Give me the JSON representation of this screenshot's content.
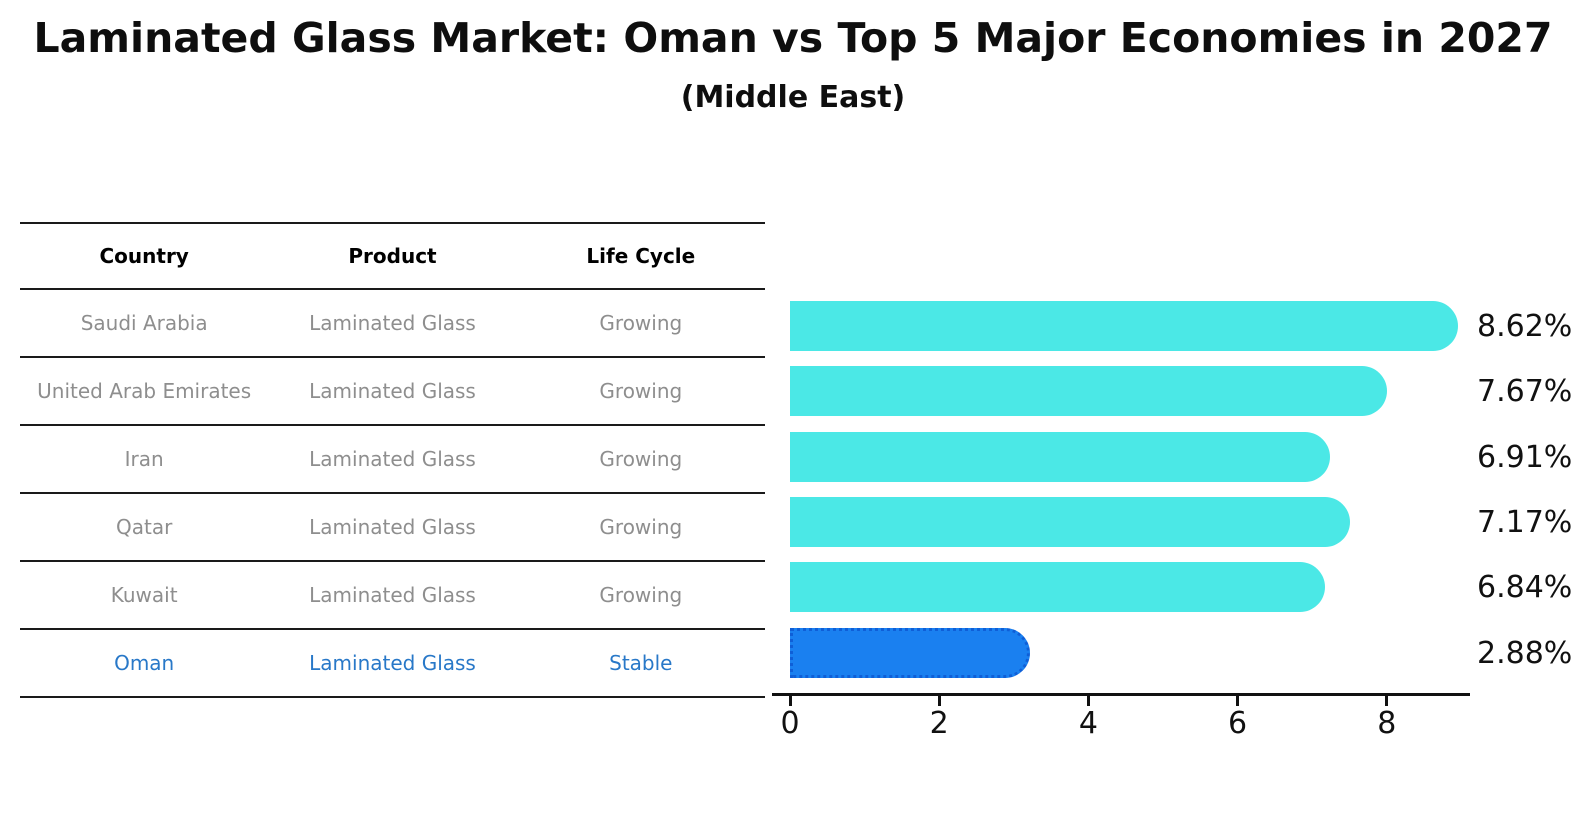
{
  "title": "Laminated Glass Market: Oman vs Top 5 Major Economies in 2027",
  "subtitle": "(Middle East)",
  "colors": {
    "bar_default": "#4BE8E6",
    "bar_highlight": "#1A80F0",
    "bar_highlight_border": "#0F5FD7",
    "highlight_text": "#2878C8",
    "row_text": "#8E8E8E",
    "header_text": "#000000",
    "axis": "#111111"
  },
  "table": {
    "headers": [
      "Country",
      "Product",
      "Life Cycle"
    ],
    "rows": [
      {
        "country": "Saudi Arabia",
        "product": "Laminated Glass",
        "life_cycle": "Growing",
        "highlighted": false
      },
      {
        "country": "United Arab Emirates",
        "product": "Laminated Glass",
        "life_cycle": "Growing",
        "highlighted": false
      },
      {
        "country": "Iran",
        "product": "Laminated Glass",
        "life_cycle": "Growing",
        "highlighted": false
      },
      {
        "country": "Qatar",
        "product": "Laminated Glass",
        "life_cycle": "Growing",
        "highlighted": false
      },
      {
        "country": "Kuwait",
        "product": "Laminated Glass",
        "life_cycle": "Growing",
        "highlighted": false
      },
      {
        "country": "Oman",
        "product": "Laminated Glass",
        "life_cycle": "Stable",
        "highlighted": true
      }
    ]
  },
  "chart_data": {
    "type": "bar",
    "orientation": "horizontal",
    "title": "Laminated Glass Market: Oman vs Top 5 Major Economies in 2027 (Middle East)",
    "categories": [
      "Saudi Arabia",
      "United Arab Emirates",
      "Iran",
      "Qatar",
      "Kuwait",
      "Oman"
    ],
    "values": [
      8.62,
      7.67,
      6.91,
      7.17,
      6.84,
      2.88
    ],
    "value_labels": [
      "8.62%",
      "7.67%",
      "6.91%",
      "7.17%",
      "6.84%",
      "2.88%"
    ],
    "unit": "%",
    "highlight_category": "Oman",
    "x_ticks": [
      0,
      2,
      4,
      6,
      8
    ],
    "xlim": [
      0,
      9.35
    ],
    "grid": false,
    "legend": false
  }
}
